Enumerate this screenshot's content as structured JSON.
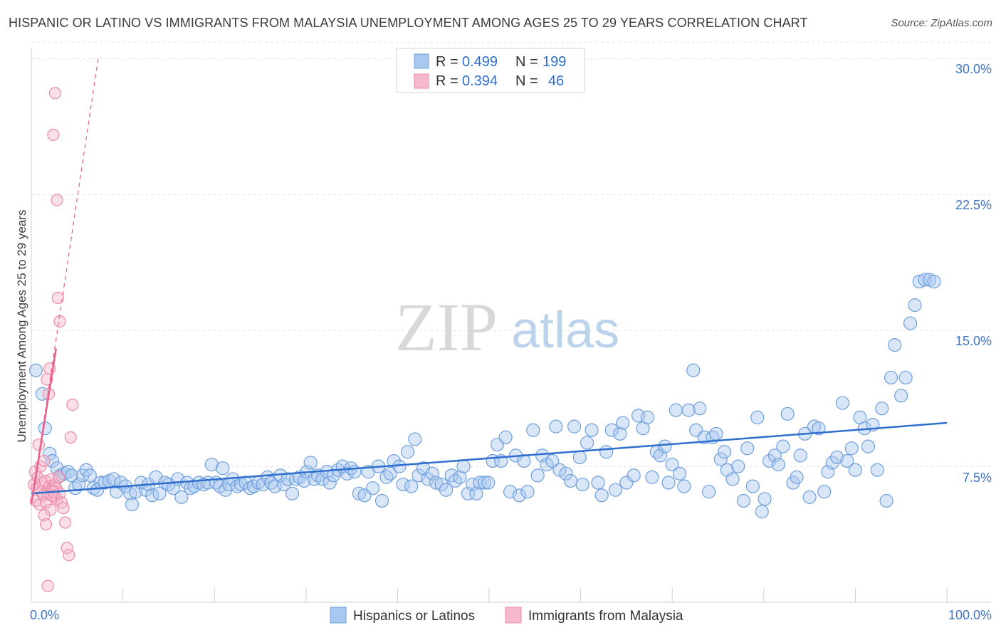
{
  "header": {
    "title": "HISPANIC OR LATINO VS IMMIGRANTS FROM MALAYSIA UNEMPLOYMENT AMONG AGES 25 TO 29 YEARS CORRELATION CHART",
    "source": "Source: ZipAtlas.com"
  },
  "watermark": {
    "zip": "ZIP",
    "atlas": "atlas"
  },
  "legend": {
    "rows": [
      {
        "r_label": "R =",
        "r_value": "0.499",
        "n_label": "N =",
        "n_value": "199"
      },
      {
        "r_label": "R =",
        "r_value": "0.394",
        "n_label": "N =",
        "n_value": "46"
      }
    ]
  },
  "colors": {
    "blue_fill": "#a9c8f0",
    "blue_stroke": "#6f9fdc",
    "blue_line": "#2e6fce",
    "pink_fill": "#f6b9cb",
    "pink_stroke": "#ec8aa8",
    "pink_line": "#e8608a",
    "grid": "#e3e3e3",
    "axis_text": "#3f73c5"
  },
  "chart_data": {
    "type": "scatter",
    "title": "HISPANIC OR LATINO VS IMMIGRANTS FROM MALAYSIA UNEMPLOYMENT AMONG AGES 25 TO 29 YEARS CORRELATION CHART",
    "xlabel": "",
    "ylabel": "Unemployment Among Ages 25 to 29 years",
    "xlim": [
      0,
      100
    ],
    "ylim": [
      0,
      31
    ],
    "x_tick_labels": [
      "0.0%",
      "100.0%"
    ],
    "y_ticks": [
      7.5,
      15.0,
      22.5,
      30.0
    ],
    "y_tick_labels": [
      "7.5%",
      "15.0%",
      "22.5%",
      "30.0%"
    ],
    "grid": true,
    "legend_position": "top-center",
    "series": [
      {
        "name": "Hispanics or Latinos",
        "r": 0.499,
        "n": 199,
        "trend": {
          "x": [
            0,
            100
          ],
          "y": [
            6.0,
            9.9
          ]
        },
        "points": [
          [
            0.5,
            12.8
          ],
          [
            1.2,
            11.5
          ],
          [
            1.5,
            9.6
          ],
          [
            2.0,
            8.2
          ],
          [
            2.3,
            7.8
          ],
          [
            2.8,
            7.4
          ],
          [
            3.2,
            7.0
          ],
          [
            3.6,
            7.1
          ],
          [
            4.0,
            7.2
          ],
          [
            4.4,
            7.0
          ],
          [
            4.8,
            6.3
          ],
          [
            5.2,
            6.5
          ],
          [
            5.6,
            7.0
          ],
          [
            6.0,
            7.3
          ],
          [
            6.4,
            7.0
          ],
          [
            6.8,
            6.3
          ],
          [
            7.2,
            6.2
          ],
          [
            7.6,
            6.6
          ],
          [
            8.0,
            6.6
          ],
          [
            8.5,
            6.7
          ],
          [
            9.0,
            6.8
          ],
          [
            9.3,
            6.1
          ],
          [
            9.8,
            6.6
          ],
          [
            10.3,
            6.4
          ],
          [
            10.8,
            6.0
          ],
          [
            11.0,
            5.4
          ],
          [
            11.4,
            6.1
          ],
          [
            12.0,
            6.6
          ],
          [
            12.5,
            6.2
          ],
          [
            12.8,
            6.5
          ],
          [
            13.2,
            5.9
          ],
          [
            13.6,
            6.9
          ],
          [
            14.0,
            6.0
          ],
          [
            14.6,
            6.6
          ],
          [
            15.0,
            6.5
          ],
          [
            15.5,
            6.3
          ],
          [
            16.0,
            6.8
          ],
          [
            16.4,
            5.8
          ],
          [
            17.0,
            6.6
          ],
          [
            17.4,
            6.3
          ],
          [
            17.8,
            6.4
          ],
          [
            18.3,
            6.6
          ],
          [
            18.8,
            6.5
          ],
          [
            19.3,
            6.6
          ],
          [
            19.7,
            7.6
          ],
          [
            20.2,
            6.6
          ],
          [
            20.6,
            6.4
          ],
          [
            20.9,
            7.4
          ],
          [
            21.2,
            6.2
          ],
          [
            21.6,
            6.5
          ],
          [
            22.0,
            6.8
          ],
          [
            22.5,
            6.4
          ],
          [
            22.9,
            6.5
          ],
          [
            23.4,
            6.6
          ],
          [
            23.9,
            6.3
          ],
          [
            24.3,
            6.4
          ],
          [
            24.8,
            6.6
          ],
          [
            25.3,
            6.5
          ],
          [
            25.8,
            6.9
          ],
          [
            26.2,
            6.6
          ],
          [
            26.6,
            6.4
          ],
          [
            27.2,
            7.0
          ],
          [
            27.6,
            6.5
          ],
          [
            28.0,
            6.8
          ],
          [
            28.5,
            6.0
          ],
          [
            28.9,
            6.8
          ],
          [
            29.3,
            6.9
          ],
          [
            29.8,
            6.7
          ],
          [
            30.1,
            7.2
          ],
          [
            30.5,
            7.7
          ],
          [
            30.9,
            6.8
          ],
          [
            31.3,
            7.0
          ],
          [
            31.8,
            6.8
          ],
          [
            32.3,
            7.2
          ],
          [
            32.6,
            6.6
          ],
          [
            33.0,
            7.0
          ],
          [
            33.5,
            7.3
          ],
          [
            34.0,
            7.5
          ],
          [
            34.5,
            7.1
          ],
          [
            34.9,
            7.4
          ],
          [
            35.3,
            7.2
          ],
          [
            35.8,
            6.0
          ],
          [
            36.4,
            5.9
          ],
          [
            36.8,
            7.2
          ],
          [
            37.3,
            6.3
          ],
          [
            37.9,
            7.5
          ],
          [
            38.3,
            5.6
          ],
          [
            38.8,
            6.9
          ],
          [
            39.2,
            7.1
          ],
          [
            39.6,
            7.8
          ],
          [
            40.2,
            7.5
          ],
          [
            40.6,
            6.5
          ],
          [
            41.1,
            8.3
          ],
          [
            41.5,
            6.4
          ],
          [
            41.9,
            9.0
          ],
          [
            42.3,
            7.0
          ],
          [
            42.8,
            7.4
          ],
          [
            43.3,
            6.8
          ],
          [
            43.8,
            7.1
          ],
          [
            44.2,
            6.6
          ],
          [
            44.8,
            6.5
          ],
          [
            45.3,
            6.2
          ],
          [
            45.9,
            7.0
          ],
          [
            46.3,
            6.7
          ],
          [
            46.8,
            6.9
          ],
          [
            47.2,
            7.5
          ],
          [
            47.7,
            6.0
          ],
          [
            48.2,
            6.5
          ],
          [
            48.6,
            6.0
          ],
          [
            49.0,
            6.6
          ],
          [
            49.5,
            6.6
          ],
          [
            49.9,
            6.6
          ],
          [
            50.4,
            7.8
          ],
          [
            50.9,
            8.7
          ],
          [
            51.3,
            7.8
          ],
          [
            51.8,
            9.1
          ],
          [
            52.3,
            6.1
          ],
          [
            52.9,
            8.1
          ],
          [
            53.3,
            5.9
          ],
          [
            53.8,
            7.8
          ],
          [
            54.2,
            6.1
          ],
          [
            54.8,
            9.5
          ],
          [
            55.3,
            7.0
          ],
          [
            55.8,
            8.1
          ],
          [
            56.3,
            7.6
          ],
          [
            56.9,
            7.8
          ],
          [
            57.3,
            9.7
          ],
          [
            57.7,
            7.3
          ],
          [
            58.4,
            7.1
          ],
          [
            58.9,
            6.7
          ],
          [
            59.3,
            9.7
          ],
          [
            59.9,
            8.0
          ],
          [
            60.2,
            6.5
          ],
          [
            60.7,
            8.8
          ],
          [
            61.2,
            9.5
          ],
          [
            61.9,
            6.6
          ],
          [
            62.3,
            5.9
          ],
          [
            62.8,
            8.3
          ],
          [
            63.4,
            9.5
          ],
          [
            63.8,
            6.2
          ],
          [
            64.3,
            9.3
          ],
          [
            64.6,
            9.9
          ],
          [
            65.0,
            6.6
          ],
          [
            65.8,
            7.0
          ],
          [
            66.3,
            10.3
          ],
          [
            66.8,
            9.6
          ],
          [
            67.3,
            10.2
          ],
          [
            67.8,
            6.9
          ],
          [
            68.3,
            8.3
          ],
          [
            68.7,
            8.1
          ],
          [
            69.2,
            8.6
          ],
          [
            69.6,
            6.6
          ],
          [
            70.0,
            7.6
          ],
          [
            70.4,
            10.6
          ],
          [
            70.8,
            7.1
          ],
          [
            71.3,
            6.4
          ],
          [
            71.8,
            10.6
          ],
          [
            72.3,
            12.8
          ],
          [
            72.6,
            9.5
          ],
          [
            73.0,
            10.7
          ],
          [
            73.5,
            9.1
          ],
          [
            74.0,
            6.1
          ],
          [
            74.4,
            9.1
          ],
          [
            74.8,
            9.3
          ],
          [
            75.3,
            7.9
          ],
          [
            75.7,
            8.3
          ],
          [
            76.0,
            7.3
          ],
          [
            76.6,
            6.8
          ],
          [
            77.2,
            7.5
          ],
          [
            77.8,
            5.6
          ],
          [
            78.2,
            8.5
          ],
          [
            78.8,
            6.4
          ],
          [
            79.3,
            10.2
          ],
          [
            79.8,
            5.0
          ],
          [
            80.1,
            5.7
          ],
          [
            80.6,
            7.8
          ],
          [
            81.2,
            8.1
          ],
          [
            81.6,
            7.6
          ],
          [
            82.1,
            8.6
          ],
          [
            82.6,
            10.4
          ],
          [
            83.2,
            6.6
          ],
          [
            83.6,
            6.9
          ],
          [
            84.0,
            8.1
          ],
          [
            84.5,
            9.3
          ],
          [
            85.0,
            5.8
          ],
          [
            85.5,
            9.7
          ],
          [
            86.0,
            9.6
          ],
          [
            86.6,
            6.1
          ],
          [
            87.0,
            7.2
          ],
          [
            87.5,
            7.7
          ],
          [
            88.0,
            8.0
          ],
          [
            88.6,
            11.0
          ],
          [
            89.1,
            7.8
          ],
          [
            89.6,
            8.5
          ],
          [
            90.0,
            7.3
          ],
          [
            90.5,
            10.2
          ],
          [
            91.0,
            9.6
          ],
          [
            91.4,
            8.6
          ],
          [
            91.9,
            9.8
          ],
          [
            92.4,
            7.3
          ],
          [
            92.9,
            10.7
          ],
          [
            93.4,
            5.6
          ],
          [
            93.9,
            12.4
          ],
          [
            94.3,
            14.2
          ],
          [
            95.0,
            11.4
          ],
          [
            95.5,
            12.4
          ],
          [
            96.0,
            15.4
          ],
          [
            96.5,
            16.4
          ],
          [
            97.0,
            17.7
          ],
          [
            97.6,
            17.8
          ],
          [
            98.1,
            17.8
          ],
          [
            98.6,
            17.7
          ]
        ]
      },
      {
        "name": "Immigrants from Malaysia",
        "r": 0.394,
        "n": 46,
        "trend": {
          "x": [
            0,
            2.7
          ],
          "y": [
            5.4,
            14.0
          ]
        },
        "trend_extended": {
          "x": [
            0,
            7.3
          ],
          "y": [
            5.4,
            30.0
          ]
        },
        "points": [
          [
            0.3,
            6.5
          ],
          [
            0.4,
            7.2
          ],
          [
            0.5,
            5.6
          ],
          [
            0.6,
            6.3
          ],
          [
            0.7,
            6.9
          ],
          [
            0.8,
            8.7
          ],
          [
            0.9,
            5.4
          ],
          [
            1.0,
            7.5
          ],
          [
            1.1,
            6.1
          ],
          [
            1.2,
            6.6
          ],
          [
            1.3,
            5.9
          ],
          [
            1.4,
            7.8
          ],
          [
            1.5,
            6.7
          ],
          [
            1.6,
            5.5
          ],
          [
            1.7,
            12.3
          ],
          [
            1.8,
            6.0
          ],
          [
            1.9,
            11.5
          ],
          [
            2.0,
            6.4
          ],
          [
            2.1,
            5.1
          ],
          [
            2.2,
            6.8
          ],
          [
            2.3,
            6.2
          ],
          [
            2.4,
            6.4
          ],
          [
            2.5,
            5.8
          ],
          [
            2.6,
            6.5
          ],
          [
            2.7,
            6.3
          ],
          [
            2.8,
            5.7
          ],
          [
            3.0,
            6.9
          ],
          [
            3.1,
            6.0
          ],
          [
            3.3,
            5.5
          ],
          [
            3.5,
            5.2
          ],
          [
            3.7,
            4.4
          ],
          [
            3.9,
            3.0
          ],
          [
            4.1,
            2.6
          ],
          [
            4.3,
            9.1
          ],
          [
            4.5,
            10.9
          ],
          [
            2.9,
            16.8
          ],
          [
            3.1,
            15.5
          ],
          [
            2.6,
            28.1
          ],
          [
            2.8,
            22.2
          ],
          [
            2.4,
            25.8
          ],
          [
            1.4,
            4.8
          ],
          [
            1.6,
            4.3
          ],
          [
            1.8,
            0.9
          ],
          [
            2.0,
            12.9
          ],
          [
            2.2,
            5.9
          ],
          [
            2.4,
            6.1
          ]
        ]
      }
    ]
  },
  "bottom_legend": {
    "items": [
      {
        "label": "Hispanics or Latinos"
      },
      {
        "label": "Immigrants from Malaysia"
      }
    ]
  }
}
